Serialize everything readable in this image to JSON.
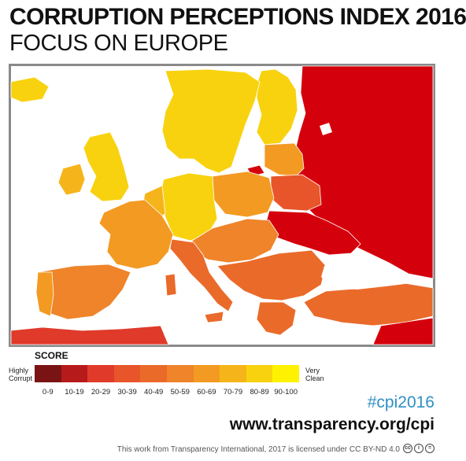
{
  "header": {
    "title": "CORRUPTION PERCEPTIONS INDEX 2016",
    "subtitle": "FOCUS ON EUROPE"
  },
  "legend": {
    "title": "SCORE",
    "low_label": [
      "Highly",
      "Corrupt"
    ],
    "high_label": [
      "Very",
      "Clean"
    ],
    "bins": [
      "0-9",
      "10-19",
      "20-29",
      "30-39",
      "40-49",
      "50-59",
      "60-69",
      "70-79",
      "80-89",
      "90-100"
    ],
    "colors": [
      "#7a1414",
      "#b71a1a",
      "#e03a2a",
      "#e8552a",
      "#ea6a2a",
      "#ef842a",
      "#f39a22",
      "#f5b51a",
      "#f8d20f",
      "#fff200"
    ]
  },
  "footer": {
    "hashtag": "#cpi2016",
    "website": "www.transparency.org/cpi",
    "license": "This work from Transparency International, 2017 is licensed under CC BY-ND 4.0",
    "cc_icons": [
      "cc-icon",
      "by-icon",
      "nd-icon"
    ]
  },
  "map": {
    "water_color": "#ffffff",
    "border_color": "#ffffff",
    "region_colors": {
      "russia": "#d4000c",
      "ukraine": "#d4000c",
      "belarus": "#e8552a",
      "baltics": "#f39a22",
      "scandinavia": "#f8d20f",
      "finland": "#f8d20f",
      "uk": "#f8d20f",
      "ireland": "#f5b51a",
      "iceland": "#f8d20f",
      "germany": "#f8d20f",
      "benelux": "#f5b51a",
      "france": "#f39a22",
      "iberia": "#ef842a",
      "italy": "#ea6a2a",
      "poland": "#f39a22",
      "central": "#ef842a",
      "balkans": "#ea6a2a",
      "greece": "#ea6a2a",
      "turkey": "#ea6a2a",
      "north_africa": "#e03a2a"
    }
  }
}
